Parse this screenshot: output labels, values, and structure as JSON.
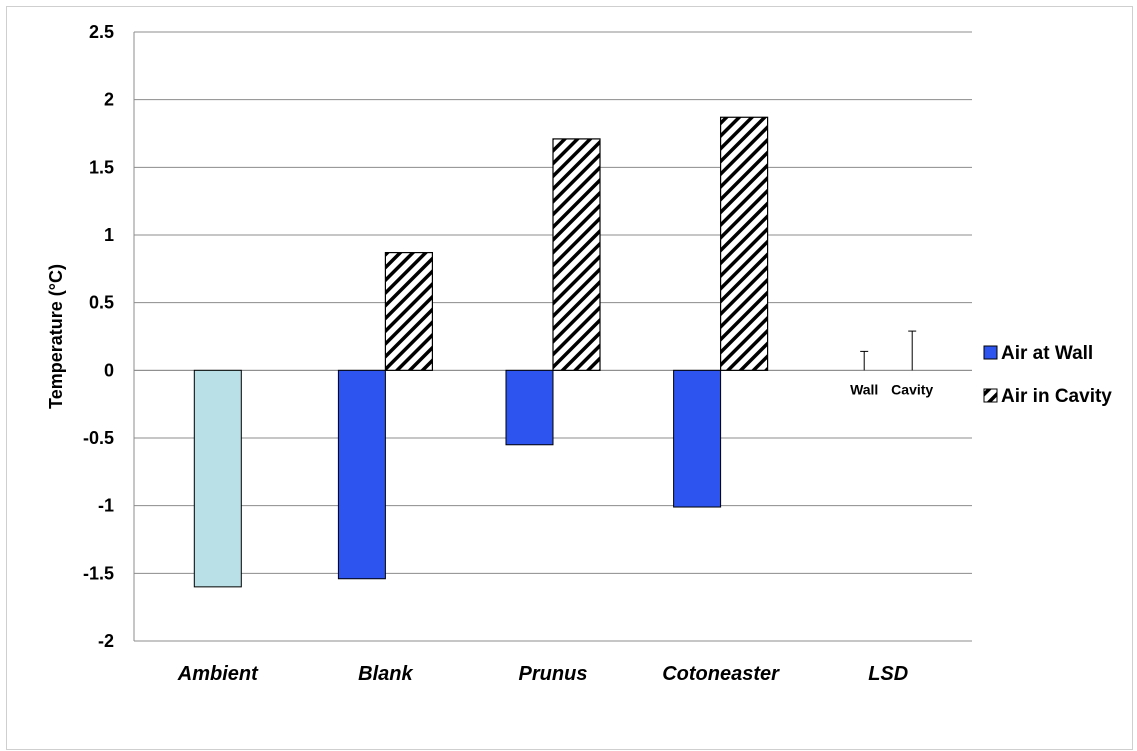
{
  "chart_data": {
    "type": "bar",
    "ylabel": "Temperature (°C)",
    "ylim": [
      -2,
      2.5
    ],
    "yticks": [
      "2.5",
      "2",
      "1.5",
      "1",
      "0.5",
      "0",
      "-0.5",
      "-1",
      "-1.5",
      "-2"
    ],
    "grid": true,
    "legend_position": "right",
    "categories": [
      "Ambient",
      "Blank",
      "Prunus",
      "Cotoneaster",
      "LSD"
    ],
    "series": [
      {
        "name": "Air at Wall",
        "values": [
          -1.6,
          -1.54,
          -0.55,
          -1.01,
          null
        ],
        "color": "#2e54f0",
        "ambient_color": "#b8e0e6"
      },
      {
        "name": "Air in Cavity",
        "values": [
          null,
          0.87,
          1.71,
          1.87,
          null
        ],
        "pattern": "diagonal-hatch"
      }
    ],
    "lsd": {
      "wall": {
        "label": "Wall",
        "value": 0.14
      },
      "cavity": {
        "label": "Cavity",
        "value": 0.29
      }
    }
  }
}
